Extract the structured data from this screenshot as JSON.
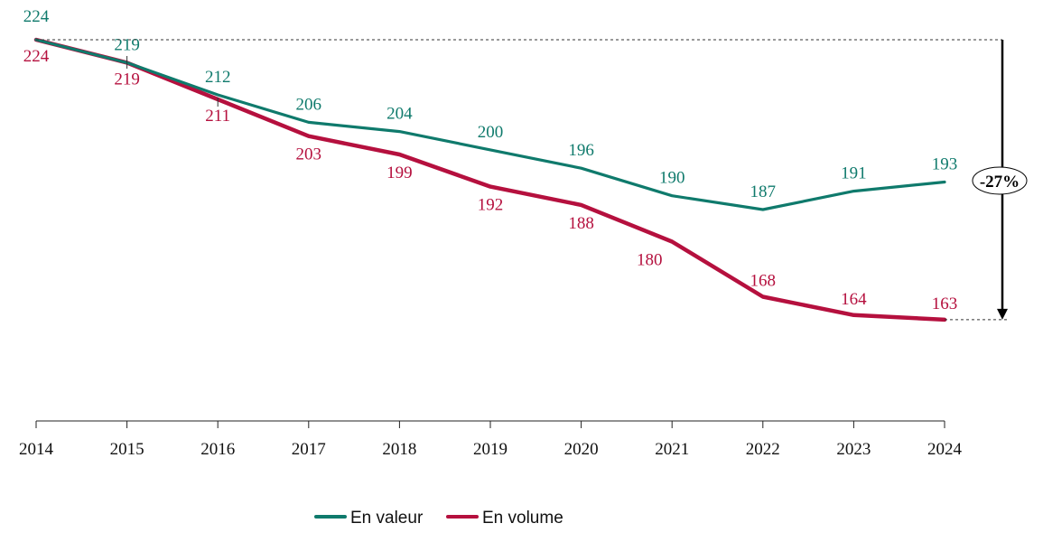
{
  "chart_data": {
    "type": "line",
    "x": [
      "2014",
      "2015",
      "2016",
      "2017",
      "2018",
      "2019",
      "2020",
      "2021",
      "2022",
      "2023",
      "2024"
    ],
    "series": [
      {
        "name": "En valeur",
        "color": "#0f7a6c",
        "values": [
          224,
          219,
          212,
          206,
          204,
          200,
          196,
          190,
          187,
          191,
          193
        ],
        "labels": [
          "224",
          "219",
          "212",
          "206",
          "204",
          "200",
          "196",
          "190",
          "187",
          "191",
          "193"
        ]
      },
      {
        "name": "En volume",
        "color": "#b5103e",
        "values": [
          224,
          219,
          211,
          203,
          199,
          192,
          188,
          180,
          168,
          164,
          163
        ],
        "labels": [
          "224",
          "219",
          "211",
          "203",
          "199",
          "192",
          "188",
          "180",
          "168",
          "164",
          "163"
        ]
      }
    ],
    "ylim": [
      139,
      231
    ],
    "grid": false,
    "legend_position": "bottom-center",
    "annotation": {
      "text": "-27%",
      "from": 224,
      "to": 163
    }
  }
}
